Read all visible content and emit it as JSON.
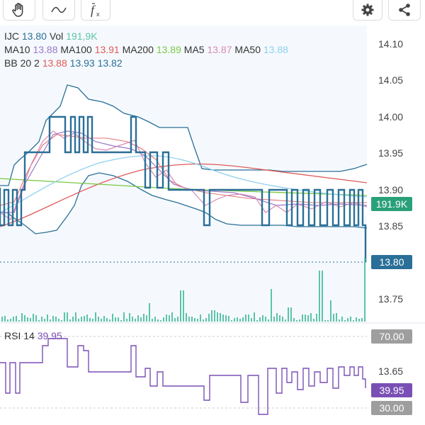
{
  "toolbar": {
    "buttons": [
      {
        "name": "hand-tool-button",
        "icon": "hand-icon"
      },
      {
        "name": "draw-line-tool-button",
        "icon": "wave-line-icon"
      },
      {
        "name": "indicator-button",
        "icon": "function-icon"
      }
    ],
    "right_buttons": [
      {
        "name": "settings-button",
        "icon": "gear-icon"
      },
      {
        "name": "share-button",
        "icon": "share-icon"
      }
    ]
  },
  "legend": {
    "symbol": "IJC",
    "price": "13.80",
    "vol_label": "Vol",
    "vol_value": "191,9K",
    "ma10_label": "MA10",
    "ma10_value": "13.88",
    "ma100_label": "MA100",
    "ma100_value": "13.91",
    "ma200_label": "MA200",
    "ma200_value": "13.89",
    "ma5_label": "MA5",
    "ma5_value": "13.87",
    "ma50_label": "MA50",
    "ma50_value": "13.88",
    "bb_label": "BB 20 2",
    "bb_upper": "13.88",
    "bb_mid": "13.93",
    "bb_lower": "13.82"
  },
  "price_axis": {
    "ticks": [
      "14.10",
      "14.05",
      "14.00",
      "13.95",
      "13.90",
      "13.85",
      "13.75",
      "13.65"
    ]
  },
  "badges": {
    "volume": "191.9K",
    "last_price": "13.80",
    "rsi_upper": "70.00",
    "rsi_value": "39.95",
    "rsi_lower": "30.00"
  },
  "rsi_legend": {
    "label": "RSI 14",
    "value": "39.95"
  },
  "colors": {
    "price_line": "#2a6f97",
    "bb_line": "#2a6f97",
    "ma5": "#d889b4",
    "ma10": "#9a78c8",
    "ma50": "#8fd0ee",
    "ma100": "#e05a5a",
    "ma200": "#7ac943",
    "volume": "#5cc4a8",
    "rsi": "#7a4fb5",
    "badge_green": "#2aa07a",
    "badge_blue": "#2a6f97",
    "badge_gray": "#9e9e9e",
    "badge_purple": "#7a4fb5"
  }
}
